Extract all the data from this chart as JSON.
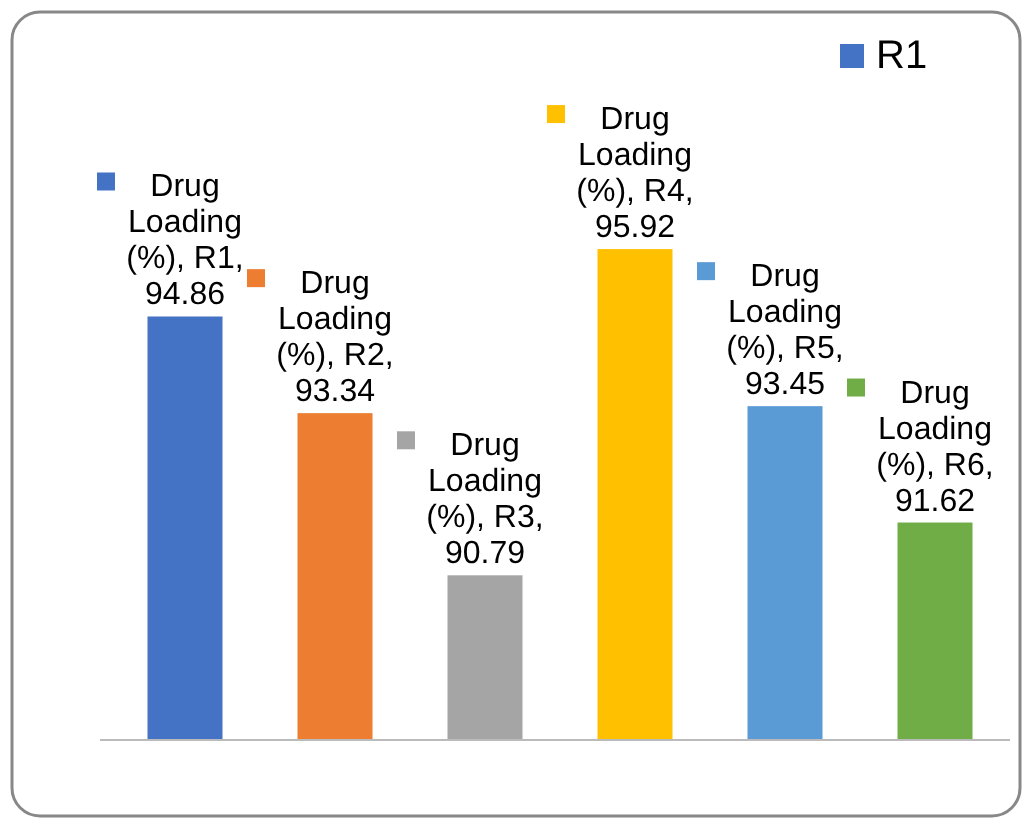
{
  "chart_data": {
    "type": "bar",
    "categories": [
      null,
      null,
      null,
      null,
      null,
      null
    ],
    "values": [
      94.86,
      93.34,
      90.79,
      95.92,
      93.45,
      91.62
    ],
    "colors": [
      "#4472c4",
      "#ed7d31",
      "#a5a5a5",
      "#ffc000",
      "#5b9bd5",
      "#70ad47"
    ],
    "ylim": [
      88.2,
      96
    ],
    "data_labels": true,
    "value_labels": [
      "Drug Loading (%), R1, 94.86",
      "Drug Loading (%), R2, 93.34",
      "Drug Loading (%), R3, 90.79",
      "Drug Loading (%), R4, 95.92",
      "Drug Loading (%), R5, 93.45",
      "Drug Loading (%), R6, 91.62"
    ],
    "annotations": [
      "R1"
    ]
  }
}
